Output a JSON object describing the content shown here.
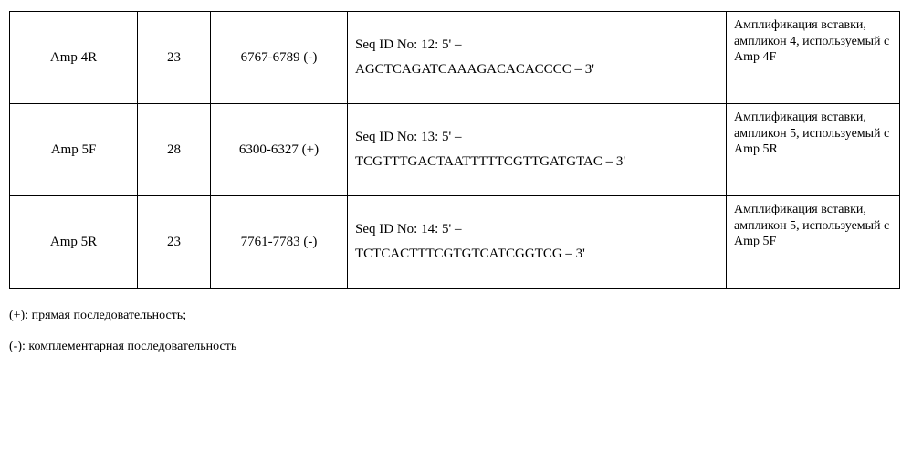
{
  "table": {
    "rows": [
      {
        "name": "Amp 4R",
        "length": "23",
        "position": "6767-6789 (-)",
        "seq_line1": "Seq ID No: 12: 5' –",
        "seq_line2": "AGCTCAGATCAAAGACACACCCC – 3'",
        "description": "Амплификация вставки, ампликон 4, используемый с Amp 4F"
      },
      {
        "name": "Amp 5F",
        "length": "28",
        "position": "6300-6327 (+)",
        "seq_line1": "Seq ID No: 13: 5' –",
        "seq_line2": "TCGTTTGACTAATTTTTCGTTGATGTAC – 3'",
        "description": "Амплификация вставки, ампликон 5, используемый с Amp 5R"
      },
      {
        "name": "Amp 5R",
        "length": "23",
        "position": "7761-7783 (-)",
        "seq_line1": "Seq ID No: 14: 5' –",
        "seq_line2": "TCTCACTTTCGTGTCATCGGTCG – 3'",
        "description": "Амплификация вставки, ампликон 5, используемый с Amp 5F"
      }
    ]
  },
  "footnotes": {
    "plus": "(+): прямая последовательность;",
    "minus": "(-): комплементарная последовательность"
  }
}
